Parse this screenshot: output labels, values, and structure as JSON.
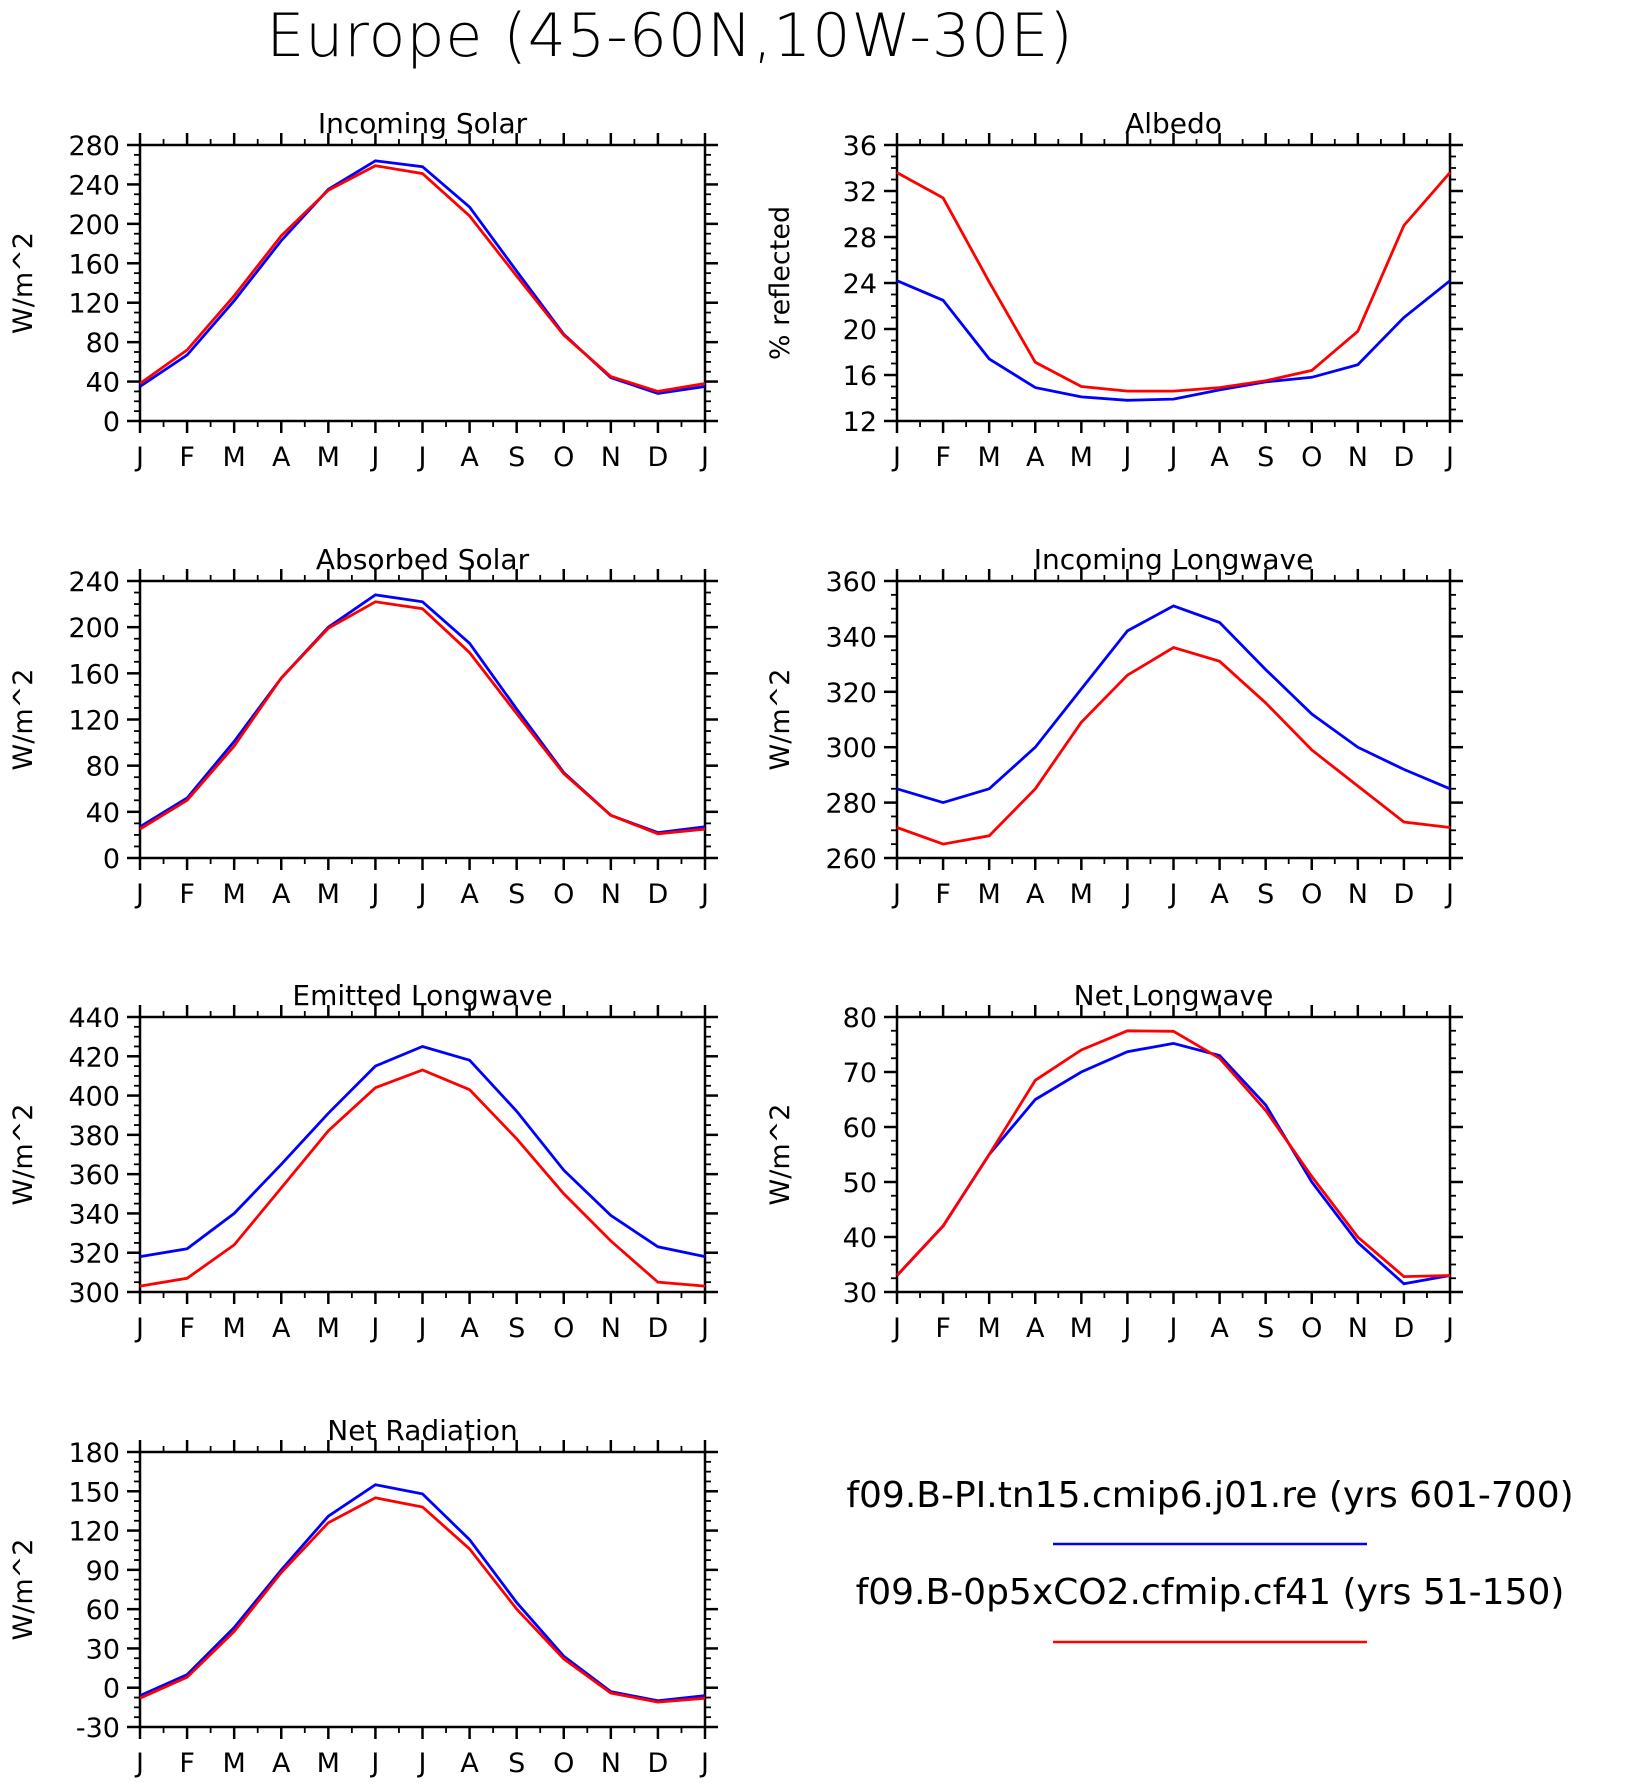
{
  "figure": {
    "title": "Europe (45-60N,10W-30E)"
  },
  "months": [
    "J",
    "F",
    "M",
    "A",
    "M",
    "J",
    "J",
    "A",
    "S",
    "O",
    "N",
    "D",
    "J"
  ],
  "legend": [
    {
      "label": "f09.B-PI.tn15.cmip6.j01.re (yrs 601-700)",
      "color": "#0000ff"
    },
    {
      "label": "f09.B-0p5xCO2.cfmip.cf41 (yrs 51-150)",
      "color": "#ff0000"
    }
  ],
  "chart_data": [
    {
      "type": "line",
      "title": "Incoming Solar",
      "ylabel": "W/m^2",
      "ylim": [
        0,
        280
      ],
      "yticks": [
        0,
        40,
        80,
        120,
        160,
        200,
        240,
        280
      ],
      "x": [
        "J",
        "F",
        "M",
        "A",
        "M",
        "J",
        "J",
        "A",
        "S",
        "O",
        "N",
        "D",
        "J"
      ],
      "series": [
        {
          "color": "#0000ff",
          "values": [
            35,
            67,
            122,
            183,
            235,
            264,
            258,
            217,
            152,
            88,
            44,
            28,
            35
          ]
        },
        {
          "color": "#ff0000",
          "values": [
            38,
            72,
            127,
            188,
            234,
            259,
            251,
            208,
            147,
            87,
            45,
            30,
            38
          ]
        }
      ]
    },
    {
      "type": "line",
      "title": "Albedo",
      "ylabel": "% reflected",
      "ylim": [
        12,
        36
      ],
      "yticks": [
        12,
        16,
        20,
        24,
        28,
        32,
        36
      ],
      "x": [
        "J",
        "F",
        "M",
        "A",
        "M",
        "J",
        "J",
        "A",
        "S",
        "O",
        "N",
        "D",
        "J"
      ],
      "series": [
        {
          "color": "#0000ff",
          "values": [
            24.2,
            22.5,
            17.4,
            14.9,
            14.1,
            13.8,
            13.9,
            14.7,
            15.4,
            15.8,
            16.9,
            21.0,
            24.2
          ]
        },
        {
          "color": "#ff0000",
          "values": [
            33.6,
            31.4,
            24.1,
            17.1,
            15.0,
            14.6,
            14.6,
            14.9,
            15.5,
            16.4,
            19.8,
            29.0,
            33.6
          ]
        }
      ]
    },
    {
      "type": "line",
      "title": "Absorbed Solar",
      "ylabel": "W/m^2",
      "ylim": [
        0,
        240
      ],
      "yticks": [
        0,
        40,
        80,
        120,
        160,
        200,
        240
      ],
      "x": [
        "J",
        "F",
        "M",
        "A",
        "M",
        "J",
        "J",
        "A",
        "S",
        "O",
        "N",
        "D",
        "J"
      ],
      "series": [
        {
          "color": "#0000ff",
          "values": [
            27,
            52,
            101,
            156,
            200,
            228,
            222,
            186,
            129,
            74,
            37,
            22,
            27
          ]
        },
        {
          "color": "#ff0000",
          "values": [
            25,
            50,
            97,
            156,
            199,
            222,
            216,
            178,
            125,
            73,
            37,
            21,
            25
          ]
        }
      ]
    },
    {
      "type": "line",
      "title": "Incoming Longwave",
      "ylabel": "W/m^2",
      "ylim": [
        260,
        360
      ],
      "yticks": [
        260,
        280,
        300,
        320,
        340,
        360
      ],
      "x": [
        "J",
        "F",
        "M",
        "A",
        "M",
        "J",
        "J",
        "A",
        "S",
        "O",
        "N",
        "D",
        "J"
      ],
      "series": [
        {
          "color": "#0000ff",
          "values": [
            285,
            280,
            285,
            300,
            321,
            342,
            351,
            345,
            328,
            312,
            300,
            292,
            285
          ]
        },
        {
          "color": "#ff0000",
          "values": [
            271,
            265,
            268,
            285,
            309,
            326,
            336,
            331,
            316,
            299,
            286,
            273,
            271
          ]
        }
      ]
    },
    {
      "type": "line",
      "title": "Emitted Longwave",
      "ylabel": "W/m^2",
      "ylim": [
        300,
        440
      ],
      "yticks": [
        300,
        320,
        340,
        360,
        380,
        400,
        420,
        440
      ],
      "x": [
        "J",
        "F",
        "M",
        "A",
        "M",
        "J",
        "J",
        "A",
        "S",
        "O",
        "N",
        "D",
        "J"
      ],
      "series": [
        {
          "color": "#0000ff",
          "values": [
            318,
            322,
            340,
            365,
            391,
            415,
            425,
            418,
            392,
            362,
            339,
            323,
            318
          ]
        },
        {
          "color": "#ff0000",
          "values": [
            303,
            307,
            324,
            353,
            382,
            404,
            413,
            403,
            378,
            350,
            326,
            305,
            303
          ]
        }
      ]
    },
    {
      "type": "line",
      "title": "Net Longwave",
      "ylabel": "W/m^2",
      "ylim": [
        30,
        80
      ],
      "yticks": [
        30,
        40,
        50,
        60,
        70,
        80
      ],
      "x": [
        "J",
        "F",
        "M",
        "A",
        "M",
        "J",
        "J",
        "A",
        "S",
        "O",
        "N",
        "D",
        "J"
      ],
      "series": [
        {
          "color": "#0000ff",
          "values": [
            33,
            42,
            55,
            65,
            70,
            73.7,
            75.2,
            73,
            64,
            50,
            39,
            31.5,
            33
          ]
        },
        {
          "color": "#ff0000",
          "values": [
            33,
            42,
            55,
            68.5,
            74,
            77.5,
            77.4,
            72.5,
            63,
            51,
            40,
            32.8,
            33
          ]
        }
      ]
    },
    {
      "type": "line",
      "title": "Net Radiation",
      "ylabel": "W/m^2",
      "ylim": [
        -30,
        180
      ],
      "yticks": [
        -30,
        0,
        30,
        60,
        90,
        120,
        150,
        180
      ],
      "x": [
        "J",
        "F",
        "M",
        "A",
        "M",
        "J",
        "J",
        "A",
        "S",
        "O",
        "N",
        "D",
        "J"
      ],
      "series": [
        {
          "color": "#0000ff",
          "values": [
            -6,
            10,
            46,
            90,
            131,
            155,
            148,
            113,
            65,
            24,
            -3,
            -10,
            -6
          ]
        },
        {
          "color": "#ff0000",
          "values": [
            -8,
            8,
            43,
            88,
            126,
            145,
            138,
            106,
            60,
            22,
            -4,
            -11,
            -8
          ]
        }
      ]
    }
  ]
}
